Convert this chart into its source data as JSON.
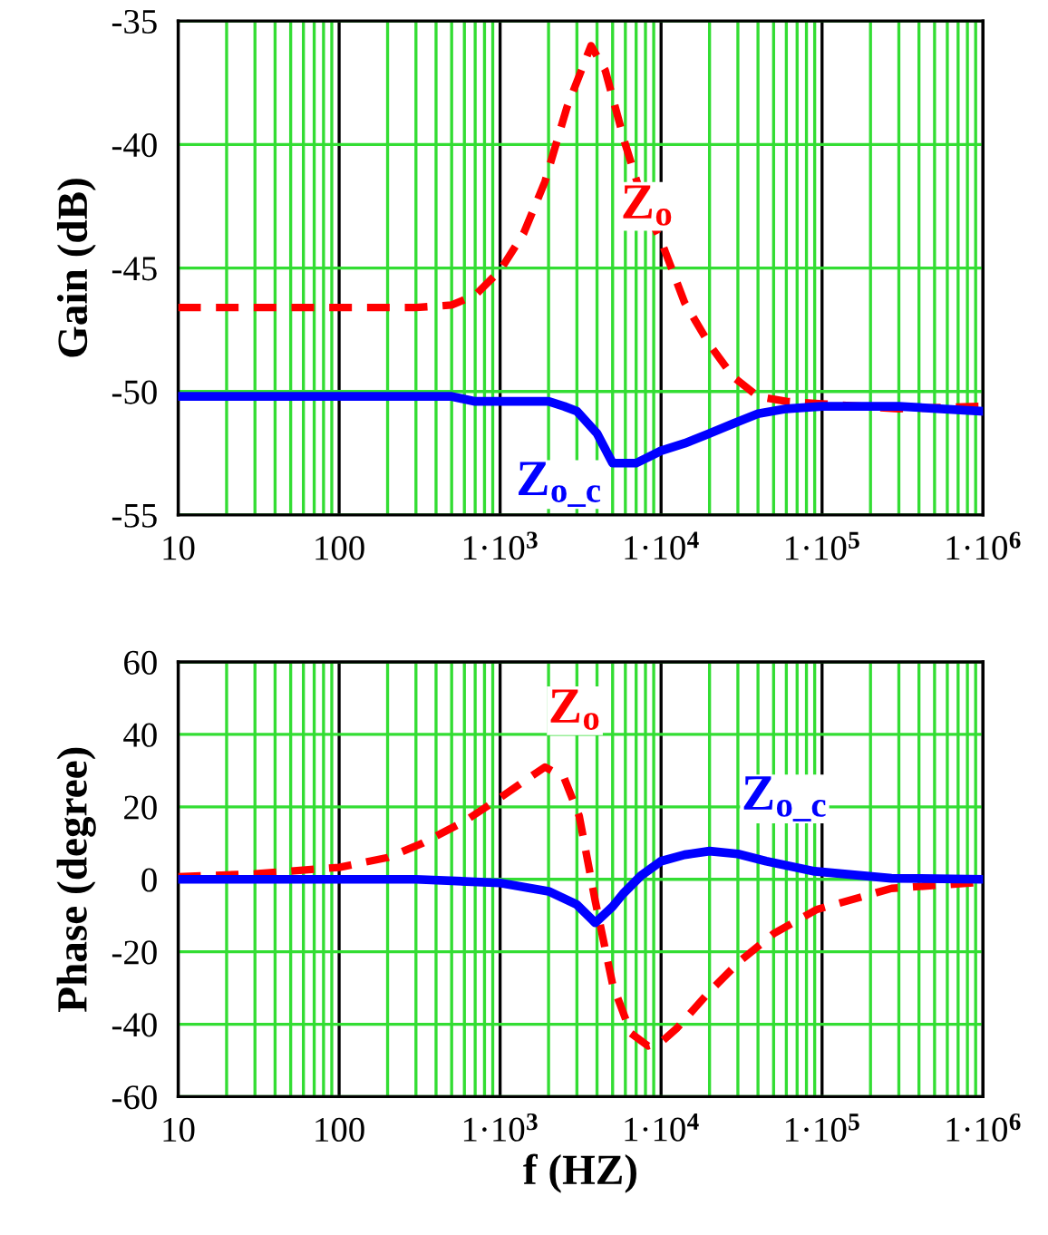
{
  "chart_data": [
    {
      "type": "line",
      "ylabel": "Gain (dB)",
      "log": "x",
      "xlim": [
        10,
        1000000
      ],
      "ylim": [
        -55,
        -35
      ],
      "xticks": [
        10,
        100,
        {
          "value": 1000,
          "label": "1·10$^{3}$"
        },
        {
          "value": 10000,
          "label": "1·10$^{4}$"
        },
        {
          "value": 100000,
          "label": "1·10$^{5}$"
        },
        {
          "value": 1000000,
          "label": "1·10$^{6}$"
        }
      ],
      "yticks": [
        -55,
        -50,
        -45,
        -40,
        -35
      ],
      "grid": true,
      "legend": false,
      "series": [
        {
          "name": "Z$_{o}$",
          "color": "#ff0000",
          "line_style": "dashed",
          "x": [
            10,
            100,
            300,
            500,
            700,
            1000,
            1400,
            1900,
            2600,
            3670,
            4500,
            6000,
            8000,
            10000,
            14000,
            20000,
            28000,
            40000,
            60000,
            100000,
            300000,
            1000000
          ],
          "values": [
            -46.6,
            -46.6,
            -46.6,
            -46.5,
            -46.1,
            -45.1,
            -43.6,
            -41.5,
            -38.5,
            -36.0,
            -37.0,
            -40.0,
            -42.6,
            -43.9,
            -46.4,
            -48.1,
            -49.4,
            -50.2,
            -50.4,
            -50.5,
            -50.7,
            -50.6
          ]
        },
        {
          "name": "Z$_{o_c}$",
          "color": "#0000ff",
          "line_style": "solid",
          "x": [
            10,
            100,
            500,
            700,
            2000,
            2500,
            3000,
            4000,
            5000,
            7000,
            10000,
            14000,
            20000,
            28000,
            40000,
            60000,
            100000,
            300000,
            1000000
          ],
          "values": [
            -50.2,
            -50.2,
            -50.2,
            -50.4,
            -50.4,
            -50.6,
            -50.8,
            -51.7,
            -52.9,
            -52.9,
            -52.4,
            -52.1,
            -51.7,
            -51.3,
            -50.9,
            -50.7,
            -50.6,
            -50.6,
            -50.8
          ]
        }
      ]
    },
    {
      "type": "line",
      "xlabel": "f (HZ)",
      "ylabel": "Phase (degree)",
      "log": "x",
      "xlim": [
        10,
        1000000
      ],
      "ylim": [
        -60,
        60
      ],
      "xticks": [
        10,
        100,
        {
          "value": 1000,
          "label": "1·10$^{3}$"
        },
        {
          "value": 10000,
          "label": "1·10$^{4}$"
        },
        {
          "value": 100000,
          "label": "1·10$^{5}$"
        },
        {
          "value": 1000000,
          "label": "1·10$^{6}$"
        }
      ],
      "yticks": [
        -60,
        -40,
        -20,
        0,
        20,
        40,
        60
      ],
      "grid": true,
      "legend": false,
      "series": [
        {
          "name": "Z$_{o}$",
          "color": "#ff0000",
          "line_style": "dashed",
          "x": [
            10,
            30,
            100,
            200,
            330,
            600,
            1000,
            1400,
            1900,
            2500,
            3100,
            3900,
            5000,
            6500,
            8300,
            10000,
            12600,
            20000,
            31000,
            50000,
            93000,
            270000,
            1000000
          ],
          "values": [
            0.7,
            1.5,
            3.3,
            6.0,
            10.0,
            16.0,
            22.5,
            27.0,
            31.0,
            28.0,
            17.5,
            -6.0,
            -29.0,
            -42.5,
            -46.0,
            -45.0,
            -41.0,
            -31.0,
            -22.5,
            -15.0,
            -8.3,
            -2.5,
            -0.8
          ]
        },
        {
          "name": "Z$_{o_c}$",
          "color": "#0000ff",
          "line_style": "solid",
          "x": [
            10,
            100,
            300,
            1000,
            2000,
            3000,
            3900,
            5000,
            5800,
            7500,
            10000,
            14000,
            20000,
            30000,
            45000,
            90000,
            270000,
            1000000
          ],
          "values": [
            0,
            0,
            0,
            -1.0,
            -3.3,
            -7.0,
            -12.0,
            -7.5,
            -4.0,
            1.0,
            5.0,
            6.8,
            7.8,
            7.0,
            5.0,
            2.2,
            0.3,
            0
          ]
        }
      ]
    }
  ]
}
